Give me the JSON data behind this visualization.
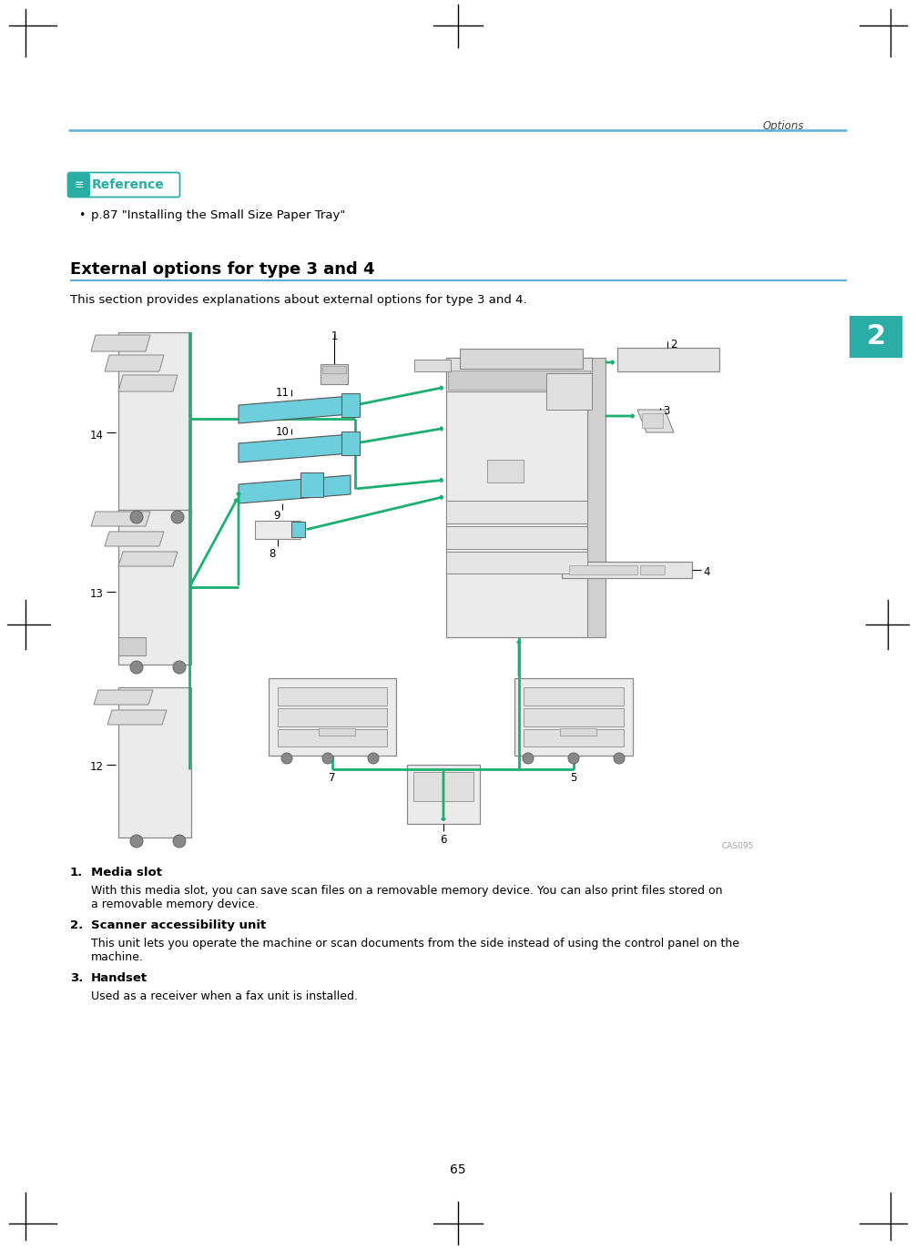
{
  "page_title": "Options",
  "page_number": "65",
  "header_line_color": "#5BAFD6",
  "reference_badge_color": "#2AADA4",
  "reference_text": "Reference",
  "bullet_item": "p.87 \"Installing the Small Size Paper Tray\"",
  "section_title": "External options for type 3 and 4",
  "section_title_color": "#1A1A1A",
  "section_line_color": "#5BAFD6",
  "section_desc": "This section provides explanations about external options for type 3 and 4.",
  "tab_number": "2",
  "tab_color": "#2AADA4",
  "list_items": [
    {
      "number": "1.",
      "title": "Media slot",
      "body": "With this media slot, you can save scan files on a removable memory device. You can also print files stored on\na removable memory device."
    },
    {
      "number": "2.",
      "title": "Scanner accessibility unit",
      "body": "This unit lets you operate the machine or scan documents from the side instead of using the control panel on the\nmachine."
    },
    {
      "number": "3.",
      "title": "Handset",
      "body": "Used as a receiver when a fax unit is installed."
    }
  ],
  "image_id": "CAS095",
  "green_color": "#1DAF72",
  "bg_color": "#FFFFFF",
  "text_color": "#231F20",
  "light_gray": "#D8D8D8",
  "mid_gray": "#A0A0A0",
  "dark_gray": "#707070",
  "cyan_fill": "#6ECFDC",
  "black": "#000000"
}
